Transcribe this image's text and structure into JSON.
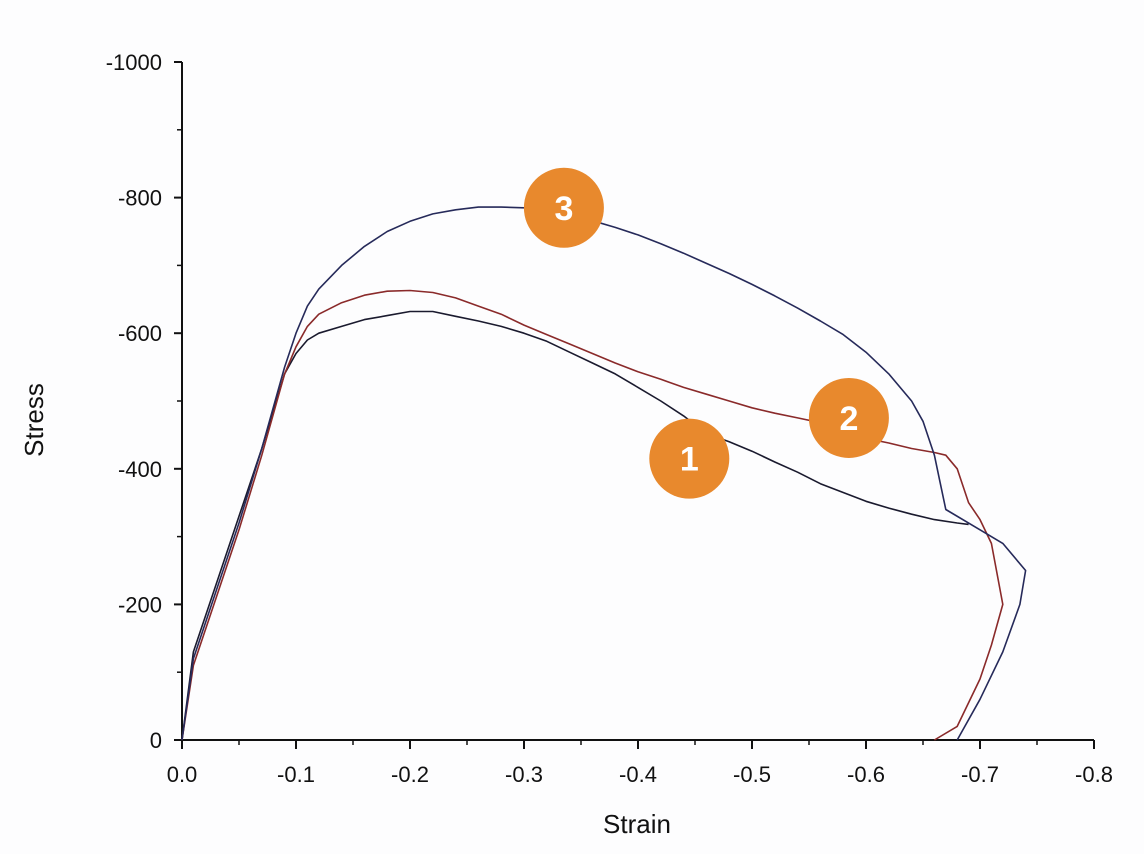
{
  "chart_data": {
    "type": "line",
    "xlabel": "Strain",
    "ylabel": "Stress",
    "xlim": [
      0.0,
      -0.8
    ],
    "ylim": [
      0,
      -1000
    ],
    "x_ticks": [
      0.0,
      -0.1,
      -0.2,
      -0.3,
      -0.4,
      -0.5,
      -0.6,
      -0.7,
      -0.8
    ],
    "x_tick_labels": [
      "0.0",
      "-0.1",
      "-0.2",
      "-0.3",
      "-0.4",
      "-0.5",
      "-0.6",
      "-0.7",
      "-0.8"
    ],
    "y_ticks": [
      0,
      -200,
      -400,
      -600,
      -800,
      -1000
    ],
    "y_tick_labels": [
      "0",
      "-200",
      "-400",
      "-600",
      "-800",
      "-1000"
    ],
    "grid": false,
    "legend": "none",
    "series": [
      {
        "label": "1",
        "color": "#1a1a2e",
        "x": [
          0.0,
          -0.01,
          -0.03,
          -0.05,
          -0.07,
          -0.09,
          -0.1,
          -0.11,
          -0.12,
          -0.14,
          -0.16,
          -0.18,
          -0.2,
          -0.22,
          -0.24,
          -0.26,
          -0.28,
          -0.3,
          -0.32,
          -0.34,
          -0.36,
          -0.38,
          -0.4,
          -0.42,
          -0.44,
          -0.46,
          -0.48,
          -0.5,
          -0.52,
          -0.54,
          -0.56,
          -0.58,
          -0.6,
          -0.62,
          -0.64,
          -0.66,
          -0.68,
          -0.69
        ],
        "y": [
          0,
          -130,
          -230,
          -330,
          -430,
          -540,
          -570,
          -590,
          -600,
          -610,
          -620,
          -626,
          -632,
          -632,
          -625,
          -618,
          -610,
          -600,
          -588,
          -572,
          -556,
          -540,
          -520,
          -500,
          -478,
          -452,
          -440,
          -426,
          -410,
          -395,
          -378,
          -365,
          -352,
          -342,
          -333,
          -325,
          -320,
          -318
        ]
      },
      {
        "label": "2",
        "color": "#8a2a2a",
        "x": [
          0.0,
          -0.01,
          -0.03,
          -0.05,
          -0.07,
          -0.09,
          -0.1,
          -0.11,
          -0.12,
          -0.14,
          -0.16,
          -0.18,
          -0.2,
          -0.22,
          -0.24,
          -0.26,
          -0.28,
          -0.3,
          -0.32,
          -0.34,
          -0.36,
          -0.38,
          -0.4,
          -0.42,
          -0.44,
          -0.46,
          -0.48,
          -0.5,
          -0.52,
          -0.54,
          -0.56,
          -0.58,
          -0.6,
          -0.62,
          -0.64,
          -0.66,
          -0.67,
          -0.68,
          -0.69,
          -0.7,
          -0.71,
          -0.72,
          -0.71,
          -0.7,
          -0.68,
          -0.66
        ],
        "y": [
          0,
          -110,
          -210,
          -310,
          -420,
          -540,
          -580,
          -610,
          -628,
          -645,
          -656,
          -662,
          -663,
          -660,
          -652,
          -640,
          -628,
          -612,
          -598,
          -584,
          -570,
          -556,
          -543,
          -532,
          -520,
          -510,
          -500,
          -490,
          -482,
          -475,
          -468,
          -455,
          -445,
          -438,
          -430,
          -424,
          -420,
          -400,
          -350,
          -325,
          -290,
          -200,
          -140,
          -90,
          -20,
          0
        ]
      },
      {
        "label": "3",
        "color": "#262a5a",
        "x": [
          0.0,
          -0.01,
          -0.03,
          -0.05,
          -0.07,
          -0.09,
          -0.1,
          -0.11,
          -0.12,
          -0.14,
          -0.16,
          -0.18,
          -0.2,
          -0.22,
          -0.24,
          -0.26,
          -0.28,
          -0.3,
          -0.32,
          -0.34,
          -0.36,
          -0.38,
          -0.4,
          -0.42,
          -0.44,
          -0.46,
          -0.48,
          -0.5,
          -0.52,
          -0.54,
          -0.56,
          -0.58,
          -0.6,
          -0.62,
          -0.64,
          -0.65,
          -0.66,
          -0.665,
          -0.67,
          -0.7,
          -0.72,
          -0.74,
          -0.735,
          -0.72,
          -0.7,
          -0.68
        ],
        "y": [
          0,
          -120,
          -220,
          -320,
          -430,
          -550,
          -600,
          -640,
          -665,
          -700,
          -728,
          -750,
          -765,
          -776,
          -782,
          -786,
          -786,
          -785,
          -780,
          -774,
          -766,
          -756,
          -745,
          -732,
          -718,
          -703,
          -688,
          -672,
          -655,
          -637,
          -618,
          -598,
          -572,
          -540,
          -500,
          -470,
          -420,
          -380,
          -340,
          -310,
          -290,
          -250,
          -200,
          -130,
          -60,
          0
        ]
      }
    ],
    "annotations": [
      {
        "text": "1",
        "x": -0.445,
        "y": -415,
        "color": "#e8892d"
      },
      {
        "text": "2",
        "x": -0.585,
        "y": -475,
        "color": "#e8892d"
      },
      {
        "text": "3",
        "x": -0.335,
        "y": -785,
        "color": "#e8892d"
      }
    ]
  }
}
